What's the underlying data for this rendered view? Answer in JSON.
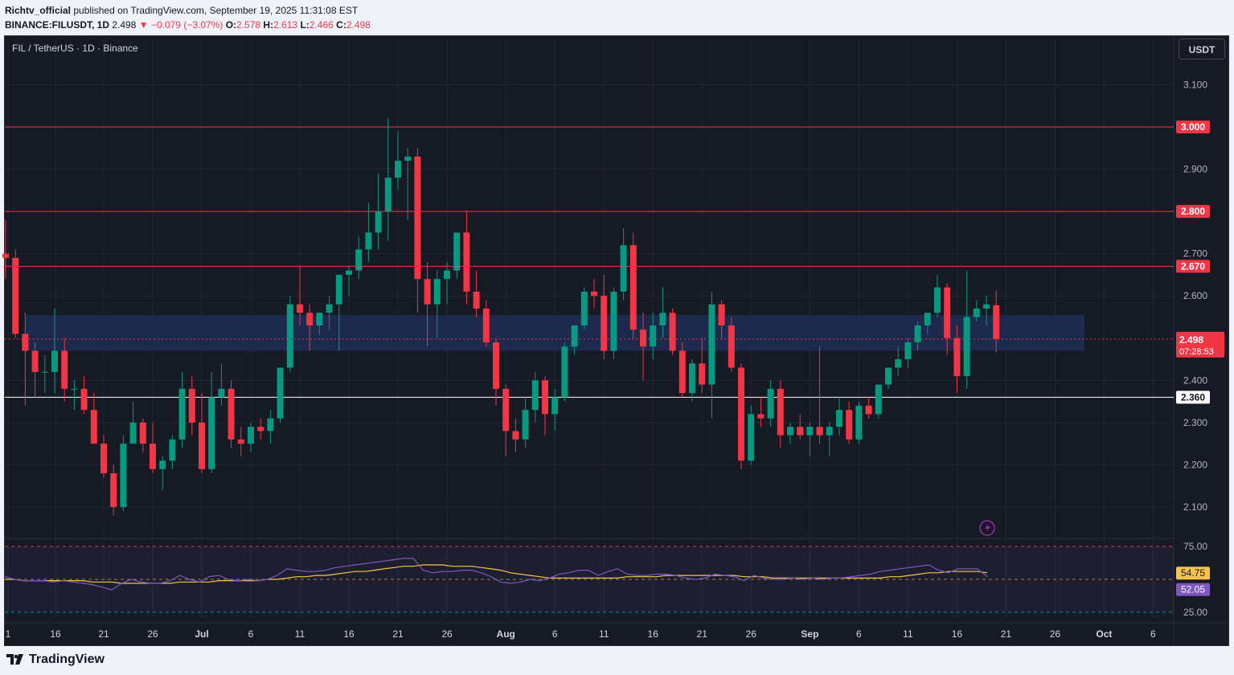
{
  "header": {
    "author": "Richtv_official",
    "published_text": "published on TradingView.com, September 19, 2025 11:31:08 EST",
    "symbol": "BINANCE:FILUSDT, 1D",
    "last": "2.498",
    "change": "▼ −0.079 (−3.07%)",
    "o_label": "O:",
    "o_value": "2.578",
    "h_label": "H:",
    "h_value": "2.613",
    "l_label": "L:",
    "l_value": "2.466",
    "c_label": "C:",
    "c_value": "2.498"
  },
  "chart_title": "FIL / TetherUS · 1D · Binance",
  "currency_button": "USDT",
  "brand": "TradingView",
  "colors": {
    "up": "#089981",
    "down": "#f23645",
    "level": "#f23645",
    "support": "#ffffff",
    "zone": "#1e2d55",
    "rsi": "#7e57c2",
    "rsi_ma": "#f7c34a"
  },
  "chart_data": {
    "type": "candlestick",
    "title": "FIL / TetherUS · 1D · Binance",
    "ylim": [
      2.03,
      3.18
    ],
    "y_ticks": [
      {
        "v": 3.1,
        "label": "3.100"
      },
      {
        "v": 2.9,
        "label": "2.900"
      },
      {
        "v": 2.7,
        "label": "2.700"
      },
      {
        "v": 2.6,
        "label": "2.600"
      },
      {
        "v": 2.4,
        "label": "2.400"
      },
      {
        "v": 2.3,
        "label": "2.300"
      },
      {
        "v": 2.2,
        "label": "2.200"
      },
      {
        "v": 2.1,
        "label": "2.100"
      }
    ],
    "x_ticks": [
      {
        "day": "Jun 1",
        "label": "1"
      },
      {
        "day": "Jun 16",
        "label": "16"
      },
      {
        "day": "Jun 21",
        "label": "21"
      },
      {
        "day": "Jun 26",
        "label": "26"
      },
      {
        "day": "Jul 1",
        "label": "Jul"
      },
      {
        "day": "Jul 6",
        "label": "6"
      },
      {
        "day": "Jul 11",
        "label": "11"
      },
      {
        "day": "Jul 16",
        "label": "16"
      },
      {
        "day": "Jul 21",
        "label": "21"
      },
      {
        "day": "Jul 26",
        "label": "26"
      },
      {
        "day": "Aug 1",
        "label": "Aug"
      },
      {
        "day": "Aug 6",
        "label": "6"
      },
      {
        "day": "Aug 11",
        "label": "11"
      },
      {
        "day": "Aug 16",
        "label": "16"
      },
      {
        "day": "Aug 21",
        "label": "21"
      },
      {
        "day": "Aug 26",
        "label": "26"
      },
      {
        "day": "Sep 1",
        "label": "Sep"
      },
      {
        "day": "Sep 6",
        "label": "6"
      },
      {
        "day": "Sep 11",
        "label": "11"
      },
      {
        "day": "Sep 16",
        "label": "16"
      },
      {
        "day": "Sep 21",
        "label": "21"
      },
      {
        "day": "Sep 26",
        "label": "26"
      },
      {
        "day": "Oct 1",
        "label": "Oct"
      },
      {
        "day": "Oct 6",
        "label": "6"
      }
    ],
    "levels": [
      {
        "value": 3.0,
        "label": "3.000",
        "color": "#f23645"
      },
      {
        "value": 2.8,
        "label": "2.800",
        "color": "#f23645"
      },
      {
        "value": 2.67,
        "label": "2.670",
        "color": "#f23645"
      },
      {
        "value": 2.36,
        "label": "2.360",
        "color": "#ffffff"
      }
    ],
    "zone": {
      "from": 2.47,
      "to": 2.555,
      "start_day": "Jun 13",
      "end_day": "Sep 29"
    },
    "last_price": {
      "value": 2.498,
      "label": "2.498",
      "countdown": "07:28:53"
    },
    "candles": [
      {
        "d": "Jun 11",
        "o": 2.7,
        "h": 2.78,
        "l": 2.64,
        "c": 2.69
      },
      {
        "d": "Jun 12",
        "o": 2.69,
        "h": 2.71,
        "l": 2.5,
        "c": 2.51
      },
      {
        "d": "Jun 13",
        "o": 2.51,
        "h": 2.56,
        "l": 2.34,
        "c": 2.47
      },
      {
        "d": "Jun 14",
        "o": 2.47,
        "h": 2.49,
        "l": 2.36,
        "c": 2.42
      },
      {
        "d": "Jun 15",
        "o": 2.42,
        "h": 2.46,
        "l": 2.37,
        "c": 2.42
      },
      {
        "d": "Jun 16",
        "o": 2.42,
        "h": 2.57,
        "l": 2.37,
        "c": 2.47
      },
      {
        "d": "Jun 17",
        "o": 2.47,
        "h": 2.5,
        "l": 2.35,
        "c": 2.38
      },
      {
        "d": "Jun 18",
        "o": 2.38,
        "h": 2.4,
        "l": 2.33,
        "c": 2.38
      },
      {
        "d": "Jun 19",
        "o": 2.38,
        "h": 2.41,
        "l": 2.32,
        "c": 2.33
      },
      {
        "d": "Jun 20",
        "o": 2.33,
        "h": 2.37,
        "l": 2.25,
        "c": 2.25
      },
      {
        "d": "Jun 21",
        "o": 2.25,
        "h": 2.27,
        "l": 2.17,
        "c": 2.18
      },
      {
        "d": "Jun 22",
        "o": 2.18,
        "h": 2.2,
        "l": 2.08,
        "c": 2.1
      },
      {
        "d": "Jun 23",
        "o": 2.1,
        "h": 2.27,
        "l": 2.09,
        "c": 2.25
      },
      {
        "d": "Jun 24",
        "o": 2.25,
        "h": 2.35,
        "l": 2.25,
        "c": 2.3
      },
      {
        "d": "Jun 25",
        "o": 2.3,
        "h": 2.31,
        "l": 2.23,
        "c": 2.25
      },
      {
        "d": "Jun 26",
        "o": 2.25,
        "h": 2.3,
        "l": 2.18,
        "c": 2.19
      },
      {
        "d": "Jun 27",
        "o": 2.19,
        "h": 2.22,
        "l": 2.14,
        "c": 2.21
      },
      {
        "d": "Jun 28",
        "o": 2.21,
        "h": 2.27,
        "l": 2.19,
        "c": 2.26
      },
      {
        "d": "Jun 29",
        "o": 2.26,
        "h": 2.42,
        "l": 2.24,
        "c": 2.38
      },
      {
        "d": "Jun 30",
        "o": 2.38,
        "h": 2.41,
        "l": 2.27,
        "c": 2.3
      },
      {
        "d": "Jul 1",
        "o": 2.3,
        "h": 2.37,
        "l": 2.18,
        "c": 2.19
      },
      {
        "d": "Jul 2",
        "o": 2.19,
        "h": 2.42,
        "l": 2.18,
        "c": 2.36
      },
      {
        "d": "Jul 3",
        "o": 2.36,
        "h": 2.44,
        "l": 2.34,
        "c": 2.38
      },
      {
        "d": "Jul 4",
        "o": 2.38,
        "h": 2.4,
        "l": 2.24,
        "c": 2.26
      },
      {
        "d": "Jul 5",
        "o": 2.26,
        "h": 2.29,
        "l": 2.22,
        "c": 2.25
      },
      {
        "d": "Jul 6",
        "o": 2.25,
        "h": 2.3,
        "l": 2.23,
        "c": 2.29
      },
      {
        "d": "Jul 7",
        "o": 2.29,
        "h": 2.31,
        "l": 2.26,
        "c": 2.28
      },
      {
        "d": "Jul 8",
        "o": 2.28,
        "h": 2.33,
        "l": 2.25,
        "c": 2.31
      },
      {
        "d": "Jul 9",
        "o": 2.31,
        "h": 2.42,
        "l": 2.3,
        "c": 2.43
      },
      {
        "d": "Jul 10",
        "o": 2.43,
        "h": 2.6,
        "l": 2.42,
        "c": 2.58
      },
      {
        "d": "Jul 11",
        "o": 2.58,
        "h": 2.67,
        "l": 2.53,
        "c": 2.56
      },
      {
        "d": "Jul 12",
        "o": 2.56,
        "h": 2.58,
        "l": 2.47,
        "c": 2.53
      },
      {
        "d": "Jul 13",
        "o": 2.53,
        "h": 2.56,
        "l": 2.51,
        "c": 2.56
      },
      {
        "d": "Jul 14",
        "o": 2.56,
        "h": 2.6,
        "l": 2.52,
        "c": 2.58
      },
      {
        "d": "Jul 15",
        "o": 2.58,
        "h": 2.65,
        "l": 2.47,
        "c": 2.65
      },
      {
        "d": "Jul 16",
        "o": 2.65,
        "h": 2.67,
        "l": 2.6,
        "c": 2.66
      },
      {
        "d": "Jul 17",
        "o": 2.66,
        "h": 2.74,
        "l": 2.64,
        "c": 2.71
      },
      {
        "d": "Jul 18",
        "o": 2.71,
        "h": 2.82,
        "l": 2.68,
        "c": 2.75
      },
      {
        "d": "Jul 19",
        "o": 2.75,
        "h": 2.89,
        "l": 2.71,
        "c": 2.8
      },
      {
        "d": "Jul 20",
        "o": 2.8,
        "h": 3.02,
        "l": 2.73,
        "c": 2.88
      },
      {
        "d": "Jul 21",
        "o": 2.88,
        "h": 2.99,
        "l": 2.85,
        "c": 2.92
      },
      {
        "d": "Jul 22",
        "o": 2.92,
        "h": 2.95,
        "l": 2.78,
        "c": 2.93
      },
      {
        "d": "Jul 23",
        "o": 2.93,
        "h": 2.95,
        "l": 2.56,
        "c": 2.64
      },
      {
        "d": "Jul 24",
        "o": 2.64,
        "h": 2.68,
        "l": 2.48,
        "c": 2.58
      },
      {
        "d": "Jul 25",
        "o": 2.58,
        "h": 2.66,
        "l": 2.5,
        "c": 2.64
      },
      {
        "d": "Jul 26",
        "o": 2.64,
        "h": 2.68,
        "l": 2.58,
        "c": 2.66
      },
      {
        "d": "Jul 27",
        "o": 2.66,
        "h": 2.74,
        "l": 2.64,
        "c": 2.75
      },
      {
        "d": "Jul 28",
        "o": 2.75,
        "h": 2.8,
        "l": 2.58,
        "c": 2.61
      },
      {
        "d": "Jul 29",
        "o": 2.61,
        "h": 2.66,
        "l": 2.55,
        "c": 2.57
      },
      {
        "d": "Jul 30",
        "o": 2.57,
        "h": 2.59,
        "l": 2.48,
        "c": 2.49
      },
      {
        "d": "Jul 31",
        "o": 2.49,
        "h": 2.5,
        "l": 2.34,
        "c": 2.38
      },
      {
        "d": "Aug 1",
        "o": 2.38,
        "h": 2.39,
        "l": 2.22,
        "c": 2.28
      },
      {
        "d": "Aug 2",
        "o": 2.28,
        "h": 2.31,
        "l": 2.23,
        "c": 2.26
      },
      {
        "d": "Aug 3",
        "o": 2.26,
        "h": 2.36,
        "l": 2.24,
        "c": 2.33
      },
      {
        "d": "Aug 4",
        "o": 2.33,
        "h": 2.42,
        "l": 2.3,
        "c": 2.4
      },
      {
        "d": "Aug 5",
        "o": 2.4,
        "h": 2.41,
        "l": 2.27,
        "c": 2.32
      },
      {
        "d": "Aug 6",
        "o": 2.32,
        "h": 2.38,
        "l": 2.28,
        "c": 2.36
      },
      {
        "d": "Aug 7",
        "o": 2.36,
        "h": 2.49,
        "l": 2.35,
        "c": 2.48
      },
      {
        "d": "Aug 8",
        "o": 2.48,
        "h": 2.53,
        "l": 2.46,
        "c": 2.53
      },
      {
        "d": "Aug 9",
        "o": 2.53,
        "h": 2.62,
        "l": 2.52,
        "c": 2.61
      },
      {
        "d": "Aug 10",
        "o": 2.61,
        "h": 2.64,
        "l": 2.57,
        "c": 2.6
      },
      {
        "d": "Aug 11",
        "o": 2.6,
        "h": 2.65,
        "l": 2.45,
        "c": 2.47
      },
      {
        "d": "Aug 12",
        "o": 2.47,
        "h": 2.62,
        "l": 2.45,
        "c": 2.61
      },
      {
        "d": "Aug 13",
        "o": 2.61,
        "h": 2.76,
        "l": 2.59,
        "c": 2.72
      },
      {
        "d": "Aug 14",
        "o": 2.72,
        "h": 2.75,
        "l": 2.5,
        "c": 2.52
      },
      {
        "d": "Aug 15",
        "o": 2.52,
        "h": 2.56,
        "l": 2.4,
        "c": 2.48
      },
      {
        "d": "Aug 16",
        "o": 2.48,
        "h": 2.56,
        "l": 2.45,
        "c": 2.53
      },
      {
        "d": "Aug 17",
        "o": 2.53,
        "h": 2.62,
        "l": 2.5,
        "c": 2.56
      },
      {
        "d": "Aug 18",
        "o": 2.56,
        "h": 2.57,
        "l": 2.46,
        "c": 2.47
      },
      {
        "d": "Aug 19",
        "o": 2.47,
        "h": 2.49,
        "l": 2.36,
        "c": 2.37
      },
      {
        "d": "Aug 20",
        "o": 2.37,
        "h": 2.45,
        "l": 2.35,
        "c": 2.44
      },
      {
        "d": "Aug 21",
        "o": 2.44,
        "h": 2.5,
        "l": 2.37,
        "c": 2.39
      },
      {
        "d": "Aug 22",
        "o": 2.39,
        "h": 2.61,
        "l": 2.31,
        "c": 2.58
      },
      {
        "d": "Aug 23",
        "o": 2.58,
        "h": 2.59,
        "l": 2.5,
        "c": 2.53
      },
      {
        "d": "Aug 24",
        "o": 2.53,
        "h": 2.55,
        "l": 2.42,
        "c": 2.43
      },
      {
        "d": "Aug 25",
        "o": 2.43,
        "h": 2.44,
        "l": 2.19,
        "c": 2.21
      },
      {
        "d": "Aug 26",
        "o": 2.21,
        "h": 2.34,
        "l": 2.2,
        "c": 2.32
      },
      {
        "d": "Aug 27",
        "o": 2.32,
        "h": 2.36,
        "l": 2.29,
        "c": 2.31
      },
      {
        "d": "Aug 28",
        "o": 2.31,
        "h": 2.4,
        "l": 2.29,
        "c": 2.38
      },
      {
        "d": "Aug 29",
        "o": 2.38,
        "h": 2.4,
        "l": 2.24,
        "c": 2.27
      },
      {
        "d": "Aug 30",
        "o": 2.27,
        "h": 2.3,
        "l": 2.25,
        "c": 2.29
      },
      {
        "d": "Aug 31",
        "o": 2.29,
        "h": 2.32,
        "l": 2.26,
        "c": 2.27
      },
      {
        "d": "Sep 1",
        "o": 2.27,
        "h": 2.3,
        "l": 2.22,
        "c": 2.29
      },
      {
        "d": "Sep 2",
        "o": 2.29,
        "h": 2.48,
        "l": 2.25,
        "c": 2.27
      },
      {
        "d": "Sep 3",
        "o": 2.27,
        "h": 2.3,
        "l": 2.22,
        "c": 2.29
      },
      {
        "d": "Sep 4",
        "o": 2.29,
        "h": 2.36,
        "l": 2.27,
        "c": 2.33
      },
      {
        "d": "Sep 5",
        "o": 2.33,
        "h": 2.35,
        "l": 2.25,
        "c": 2.26
      },
      {
        "d": "Sep 6",
        "o": 2.26,
        "h": 2.35,
        "l": 2.25,
        "c": 2.34
      },
      {
        "d": "Sep 7",
        "o": 2.34,
        "h": 2.36,
        "l": 2.31,
        "c": 2.32
      },
      {
        "d": "Sep 8",
        "o": 2.32,
        "h": 2.39,
        "l": 2.31,
        "c": 2.39
      },
      {
        "d": "Sep 9",
        "o": 2.39,
        "h": 2.43,
        "l": 2.38,
        "c": 2.43
      },
      {
        "d": "Sep 10",
        "o": 2.43,
        "h": 2.48,
        "l": 2.41,
        "c": 2.45
      },
      {
        "d": "Sep 11",
        "o": 2.45,
        "h": 2.5,
        "l": 2.43,
        "c": 2.49
      },
      {
        "d": "Sep 12",
        "o": 2.49,
        "h": 2.54,
        "l": 2.47,
        "c": 2.53
      },
      {
        "d": "Sep 13",
        "o": 2.53,
        "h": 2.56,
        "l": 2.51,
        "c": 2.56
      },
      {
        "d": "Sep 14",
        "o": 2.56,
        "h": 2.65,
        "l": 2.55,
        "c": 2.62
      },
      {
        "d": "Sep 15",
        "o": 2.62,
        "h": 2.63,
        "l": 2.46,
        "c": 2.5
      },
      {
        "d": "Sep 16",
        "o": 2.5,
        "h": 2.53,
        "l": 2.37,
        "c": 2.41
      },
      {
        "d": "Sep 17",
        "o": 2.41,
        "h": 2.66,
        "l": 2.38,
        "c": 2.55
      },
      {
        "d": "Sep 18",
        "o": 2.55,
        "h": 2.59,
        "l": 2.54,
        "c": 2.57
      },
      {
        "d": "Sep 19",
        "o": 2.57,
        "h": 2.6,
        "l": 2.53,
        "c": 2.58
      },
      {
        "d": "Sep 20",
        "o": 2.578,
        "h": 2.613,
        "l": 2.466,
        "c": 2.498
      }
    ],
    "rsi": {
      "ylim": [
        20,
        80
      ],
      "ticks": [
        {
          "v": 75,
          "label": "75.00"
        },
        {
          "v": 25,
          "label": "25.00"
        }
      ],
      "last_rsi": {
        "value": 52.05,
        "label": "52.05"
      },
      "last_ma": {
        "value": 54.75,
        "label": "54.75"
      },
      "rsi_values": [
        52,
        50,
        49,
        49,
        49,
        48,
        49,
        48,
        47,
        46,
        44,
        42,
        47,
        50,
        48,
        47,
        47,
        49,
        53,
        50,
        48,
        52,
        53,
        50,
        49,
        50,
        49,
        50,
        53,
        58,
        57,
        56,
        56,
        57,
        59,
        60,
        61,
        62,
        63,
        64,
        65,
        66,
        66,
        57,
        55,
        56,
        56,
        57,
        57,
        55,
        52,
        48,
        47,
        48,
        50,
        49,
        51,
        54,
        55,
        57,
        57,
        53,
        56,
        58,
        54,
        53,
        53,
        54,
        54,
        53,
        51,
        50,
        51,
        54,
        53,
        52,
        49,
        53,
        51,
        50,
        50,
        51,
        50,
        51,
        50,
        51,
        51,
        52,
        53,
        54,
        56,
        57,
        58,
        59,
        60,
        61,
        57,
        55,
        58,
        58,
        58,
        52
      ],
      "ma_values": [
        50,
        50,
        49,
        49,
        49,
        49,
        49,
        49,
        49,
        48,
        48,
        48,
        47,
        47,
        47,
        47,
        47,
        47,
        48,
        48,
        48,
        48,
        49,
        49,
        49,
        49,
        49,
        50,
        50,
        51,
        52,
        52,
        53,
        53,
        54,
        55,
        56,
        56,
        57,
        58,
        59,
        60,
        60,
        61,
        61,
        61,
        60,
        60,
        60,
        59,
        58,
        57,
        55,
        54,
        53,
        52,
        51,
        51,
        51,
        51,
        51,
        51,
        51,
        51,
        52,
        52,
        52,
        52,
        53,
        53,
        53,
        53,
        53,
        53,
        53,
        53,
        52,
        52,
        52,
        51,
        51,
        51,
        51,
        51,
        51,
        51,
        51,
        51,
        51,
        51,
        51,
        52,
        52,
        53,
        54,
        55,
        55,
        56,
        56,
        56,
        56,
        55
      ]
    }
  }
}
